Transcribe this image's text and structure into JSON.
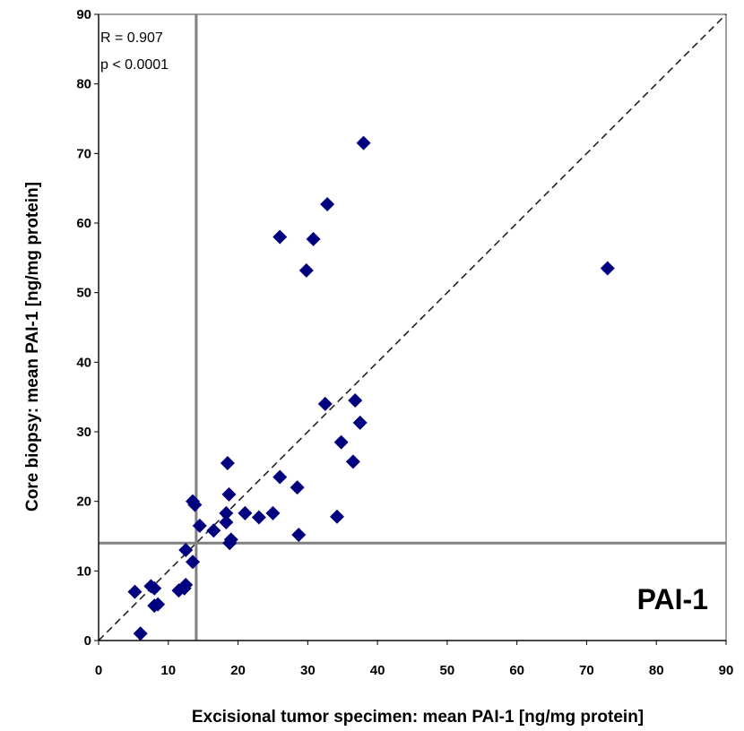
{
  "chart_data": {
    "type": "scatter",
    "title": "",
    "panel_label": "PAI-1",
    "xlabel": "Excisional tumor specimen: mean PAI-1 [ng/mg protein]",
    "ylabel": "Core biopsy: mean PAI-1 [ng/mg protein]",
    "xlim": [
      0,
      90
    ],
    "ylim": [
      0,
      90
    ],
    "x_ticks": [
      "0",
      "10",
      "20",
      "30",
      "40",
      "50",
      "60",
      "70",
      "80",
      "90"
    ],
    "y_ticks": [
      "0",
      "10",
      "20",
      "30",
      "40",
      "50",
      "60",
      "70",
      "80",
      "90"
    ],
    "grid": false,
    "annotations": {
      "r": "R = 0.907",
      "p": "p < 0.0001"
    },
    "cutoff_lines": {
      "x": 14,
      "y": 14
    },
    "identity_line": {
      "from": [
        0,
        0
      ],
      "to": [
        90,
        90
      ],
      "style": "dashed"
    },
    "marker": {
      "shape": "diamond",
      "color": "#00007f"
    },
    "line_color": "#808080",
    "points": [
      [
        6,
        1
      ],
      [
        5.2,
        7
      ],
      [
        7.5,
        7.8
      ],
      [
        8,
        7.5
      ],
      [
        8,
        5
      ],
      [
        8.5,
        5.2
      ],
      [
        11.5,
        7.2
      ],
      [
        12.3,
        7.5
      ],
      [
        12.5,
        8
      ],
      [
        12.5,
        13
      ],
      [
        13.5,
        11.3
      ],
      [
        13.5,
        20
      ],
      [
        13.8,
        19.5
      ],
      [
        14.5,
        16.5
      ],
      [
        16.5,
        15.8
      ],
      [
        18.3,
        18.3
      ],
      [
        18.3,
        17
      ],
      [
        18.5,
        25.5
      ],
      [
        18.7,
        21
      ],
      [
        19,
        14.5
      ],
      [
        18.8,
        14
      ],
      [
        21,
        18.3
      ],
      [
        23,
        17.7
      ],
      [
        25,
        18.3
      ],
      [
        26,
        23.5
      ],
      [
        28.5,
        22
      ],
      [
        28.7,
        15.2
      ],
      [
        26,
        58
      ],
      [
        29.8,
        53.2
      ],
      [
        30.8,
        57.7
      ],
      [
        32.8,
        62.7
      ],
      [
        38,
        71.5
      ],
      [
        32.5,
        34
      ],
      [
        34.2,
        17.8
      ],
      [
        34.8,
        28.5
      ],
      [
        36.5,
        25.7
      ],
      [
        36.8,
        34.5
      ],
      [
        37.5,
        31.3
      ],
      [
        73,
        53.5
      ]
    ]
  }
}
